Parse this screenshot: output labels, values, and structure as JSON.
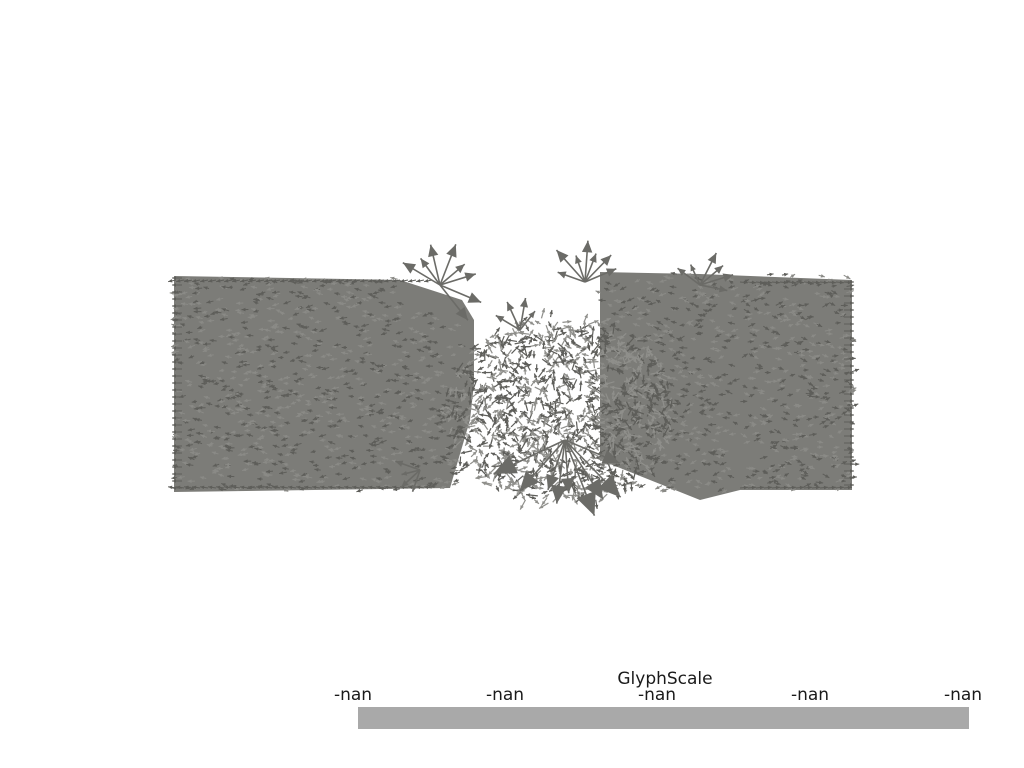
{
  "render": {
    "glyph_color": "#7c7c78",
    "glyph_edge_color": "#5e5e5a",
    "background": "#ffffff"
  },
  "scalar_bar": {
    "title": "GlyphScale",
    "tick_labels": [
      "-nan",
      "-nan",
      "-nan",
      "-nan",
      "-nan"
    ],
    "bar_color": "#a9a9a9"
  }
}
